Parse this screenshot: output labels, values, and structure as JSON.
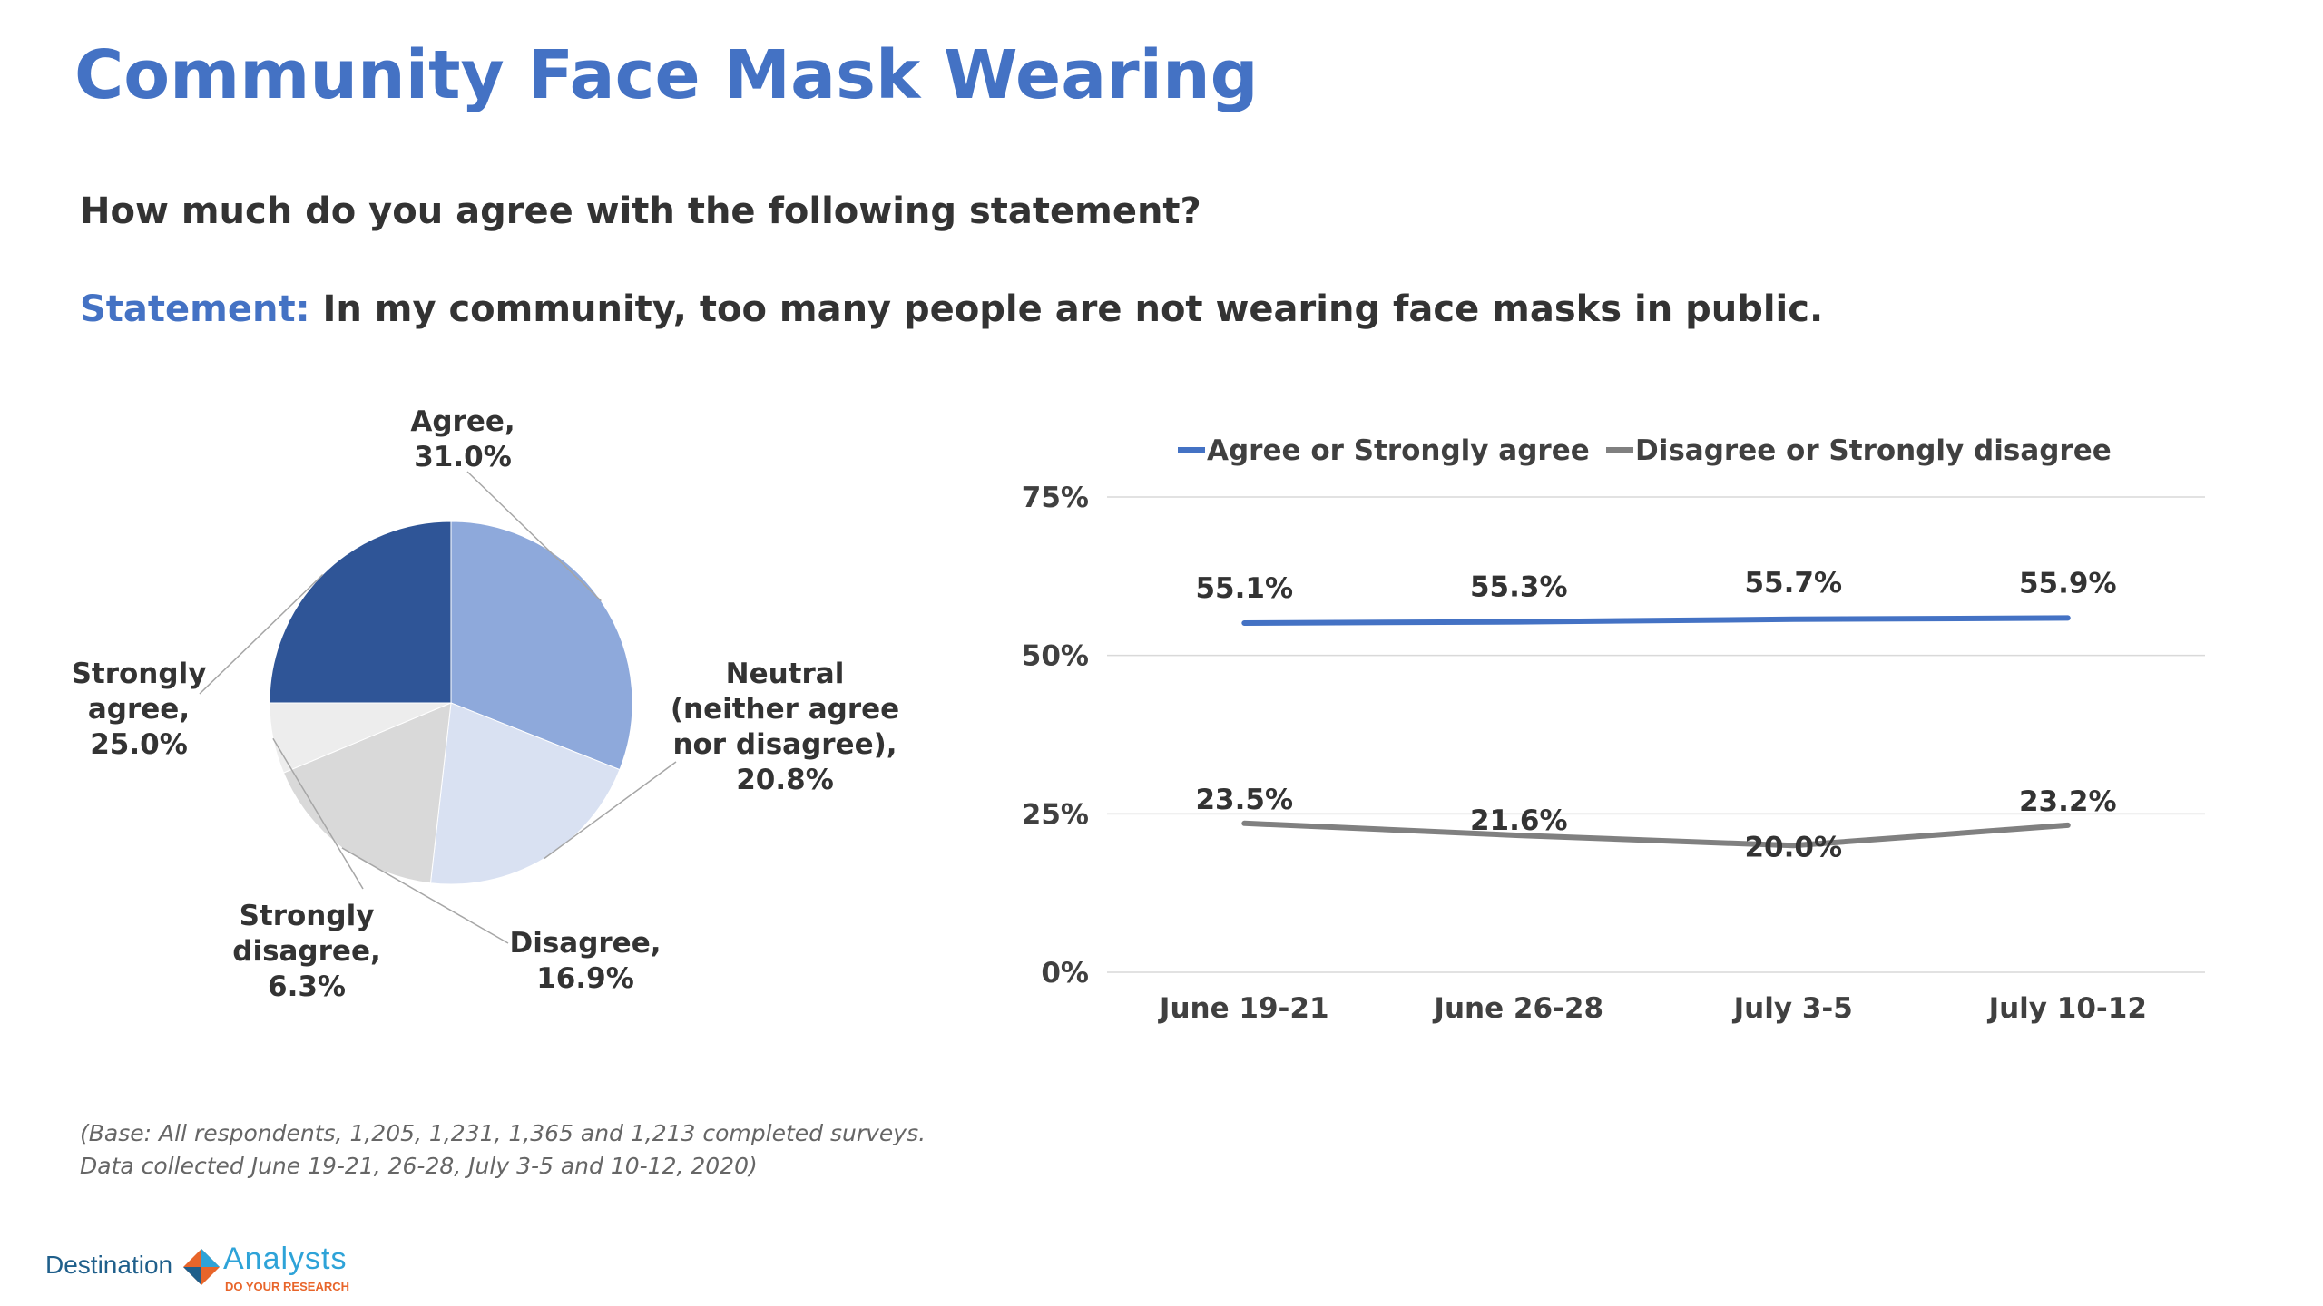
{
  "title": "Community Face Mask Wearing",
  "question": "How much do you agree with the following statement?",
  "statement": {
    "label": "Statement:",
    "text": " In my community, too many people are not wearing face masks in public."
  },
  "chart_data": [
    {
      "type": "pie",
      "slices": [
        {
          "label": "Agree, 31.0%",
          "name": "Agree",
          "value": 31.0,
          "color": "#8EA9DB"
        },
        {
          "label": "Neutral (neither agree nor disagree), 20.8%",
          "name": "Neutral (neither agree nor disagree)",
          "value": 20.8,
          "color": "#D9E1F2"
        },
        {
          "label": "Disagree, 16.9%",
          "name": "Disagree",
          "value": 16.9,
          "color": "#D9D9D9"
        },
        {
          "label": "Strongly disagree, 6.3%",
          "name": "Strongly disagree",
          "value": 6.3,
          "color": "#EDEDED"
        },
        {
          "label": "Strongly agree, 25.0%",
          "name": "Strongly agree",
          "value": 25.0,
          "color": "#2F5597"
        }
      ]
    },
    {
      "type": "line",
      "categories": [
        "June 19-21",
        "June 26-28",
        "July 3-5",
        "July 10-12"
      ],
      "series": [
        {
          "name": "Agree or Strongly agree",
          "values": [
            55.1,
            55.3,
            55.7,
            55.9
          ],
          "labels": [
            "55.1%",
            "55.3%",
            "55.7%",
            "55.9%"
          ],
          "color": "#4472C4"
        },
        {
          "name": "Disagree or Strongly disagree",
          "values": [
            23.5,
            21.6,
            20.0,
            23.2
          ],
          "labels": [
            "23.5%",
            "21.6%",
            "20.0%",
            "23.2%"
          ],
          "color": "#808080"
        }
      ],
      "ylim": [
        0,
        75
      ],
      "yticks": [
        0,
        25,
        50,
        75
      ],
      "ytick_labels": [
        "0%",
        "25%",
        "50%",
        "75%"
      ],
      "grid": true,
      "legend": "top"
    }
  ],
  "footnote": {
    "line1": "(Base: All respondents, 1,205, 1,231, 1,365 and 1,213 completed surveys.",
    "line2": "Data collected June 19-21, 26-28, July 3-5 and 10-12, 2020)"
  },
  "logo": {
    "word1": "Destination",
    "word2": "Analysts",
    "tagline": "DO YOUR RESEARCH"
  }
}
